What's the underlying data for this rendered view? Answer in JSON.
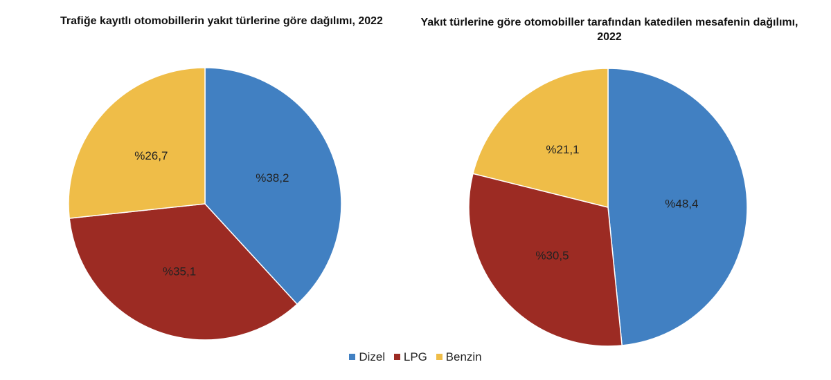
{
  "chart_data": [
    {
      "type": "pie",
      "title": "Trafiğe kayıtlı otomobillerin yakıt türlerine göre dağılımı, 2022",
      "categories": [
        "Dizel",
        "LPG",
        "Benzin"
      ],
      "values": [
        38.2,
        35.1,
        26.7
      ],
      "labels": [
        "%38,2",
        "%35,1",
        "%26,7"
      ]
    },
    {
      "type": "pie",
      "title": "Yakıt türlerine göre otomobiller tarafından katedilen mesafenin dağılımı, 2022",
      "categories": [
        "Dizel",
        "LPG",
        "Benzin"
      ],
      "values": [
        48.4,
        30.5,
        21.1
      ],
      "labels": [
        "%48,4",
        "%30,5",
        "%21,1"
      ]
    }
  ],
  "legend": {
    "position": "bottom",
    "items": [
      {
        "label": "Dizel",
        "color": "#4180c2"
      },
      {
        "label": "LPG",
        "color": "#9c2b23"
      },
      {
        "label": "Benzin",
        "color": "#efbd48"
      }
    ]
  }
}
